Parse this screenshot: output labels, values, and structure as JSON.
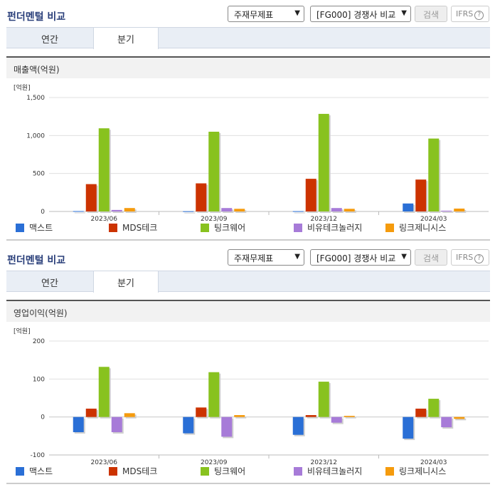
{
  "colors": {
    "맥스트": "#2a6fd6",
    "MDS테크": "#cc3300",
    "팅크웨어": "#88c21f",
    "비유테크놀러지": "#a77bd8",
    "링크제니시스": "#f59b0d"
  },
  "sections": [
    {
      "title": "펀더멘털 비교",
      "select1": "주재무제표",
      "select2": "[FG000] 경쟁사 비교",
      "search_label": "검색",
      "ifrs_label": "IFRS",
      "ifrs_help": "?",
      "tabs": [
        {
          "label": "연간"
        },
        {
          "label": "분기"
        }
      ],
      "metric_label": "매출액(억원)",
      "chart_data": {
        "type": "bar",
        "unit": "[억원]",
        "categories": [
          "2023/06",
          "2023/09",
          "2023/12",
          "2024/03"
        ],
        "ylim": [
          0,
          1500
        ],
        "yticks": [
          0,
          500,
          1000,
          1500
        ],
        "ytick_labels": [
          "0",
          "500",
          "1,000",
          "1,500"
        ],
        "series": [
          {
            "name": "맥스트",
            "values": [
              5,
              3,
              4,
              105
            ]
          },
          {
            "name": "MDS테크",
            "values": [
              360,
              370,
              430,
              420
            ]
          },
          {
            "name": "팅크웨어",
            "values": [
              1095,
              1050,
              1285,
              960
            ]
          },
          {
            "name": "비유테크놀러지",
            "values": [
              20,
              45,
              45,
              10
            ]
          },
          {
            "name": "링크제니시스",
            "values": [
              45,
              35,
              35,
              38
            ]
          }
        ]
      }
    },
    {
      "title": "펀더멘털 비교",
      "select1": "주재무제표",
      "select2": "[FG000] 경쟁사 비교",
      "search_label": "검색",
      "ifrs_label": "IFRS",
      "ifrs_help": "?",
      "tabs": [
        {
          "label": "연간"
        },
        {
          "label": "분기"
        }
      ],
      "metric_label": "영업이익(억원)",
      "chart_data": {
        "type": "bar",
        "unit": "[억원]",
        "categories": [
          "2023/06",
          "2023/09",
          "2023/12",
          "2024/03"
        ],
        "ylim": [
          -100,
          200
        ],
        "yticks": [
          -100,
          0,
          100,
          200
        ],
        "ytick_labels": [
          "-100",
          "0",
          "100",
          "200"
        ],
        "series": [
          {
            "name": "맥스트",
            "values": [
              -40,
              -43,
              -47,
              -57
            ]
          },
          {
            "name": "MDS테크",
            "values": [
              22,
              25,
              5,
              22
            ]
          },
          {
            "name": "팅크웨어",
            "values": [
              132,
              118,
              93,
              48
            ]
          },
          {
            "name": "비유테크놀러지",
            "values": [
              -40,
              -52,
              -15,
              -27
            ]
          },
          {
            "name": "링크제니시스",
            "values": [
              10,
              5,
              3,
              -5
            ]
          }
        ]
      }
    }
  ]
}
